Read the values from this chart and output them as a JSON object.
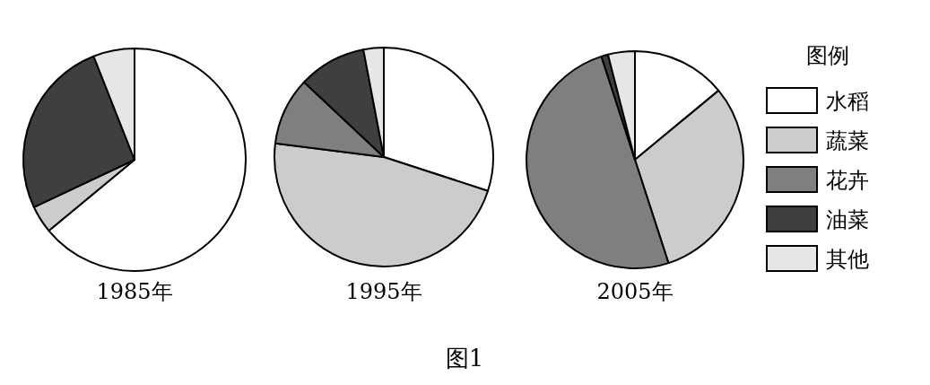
{
  "chart_data": [
    {
      "type": "pie",
      "title": "1985年",
      "categories": [
        null,
        null,
        null,
        null,
        null
      ],
      "values": [
        64,
        4,
        0,
        26,
        6
      ],
      "colors": [
        "#ffffff",
        "#cccccc",
        "#7f7f7f",
        "#3f3f3f",
        "#e6e6e6"
      ]
    },
    {
      "type": "pie",
      "title": "1995年",
      "categories": [
        null,
        null,
        null,
        null,
        null
      ],
      "values": [
        30,
        47,
        10,
        10,
        3
      ],
      "colors": [
        "#ffffff",
        "#cccccc",
        "#7f7f7f",
        "#3f3f3f",
        "#e6e6e6"
      ],
      "annotations": [
        "图1"
      ]
    },
    {
      "type": "pie",
      "title": "2005年",
      "categories": [
        "水稻",
        "蔬菜",
        "花卉",
        "油菜",
        "其他"
      ],
      "values": [
        14,
        31,
        50,
        1,
        4
      ],
      "colors": [
        "#ffffff",
        "#cccccc",
        "#7f7f7f",
        "#3f3f3f",
        "#e6e6e6"
      ],
      "legend": "right",
      "legend_title": "图例"
    }
  ]
}
